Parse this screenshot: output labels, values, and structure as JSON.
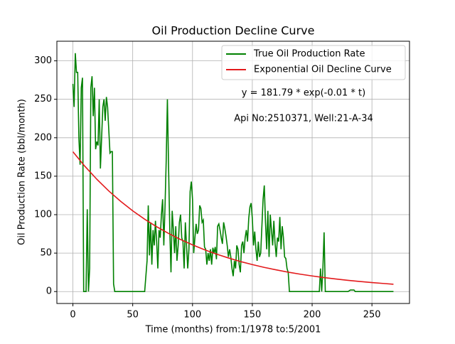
{
  "chart_data": {
    "type": "line",
    "title": "Oil Production Decline Curve",
    "xlabel": "Time (months) from:1/1978 to:5/2001",
    "ylabel": "Oil Production Rate (bbl/month)",
    "annotations": [
      "y = 181.79 * exp(-0.01 * t)",
      "Api No:2510371, Well:21-A-34"
    ],
    "xlim": [
      -13.4,
      281.4
    ],
    "ylim": [
      -15.5,
      325.5
    ],
    "xticks": [
      0,
      50,
      100,
      150,
      200,
      250
    ],
    "yticks": [
      0,
      50,
      100,
      150,
      200,
      250,
      300
    ],
    "grid": true,
    "legend": "upper right",
    "series": [
      {
        "name": "True Oil Production Rate",
        "color": "#008000",
        "x": [
          0,
          1,
          2,
          3,
          4,
          5,
          6,
          7,
          8,
          9,
          10,
          11,
          12,
          13,
          14,
          15,
          16,
          17,
          18,
          19,
          20,
          21,
          22,
          23,
          24,
          25,
          26,
          27,
          28,
          29,
          30,
          31,
          32,
          33,
          34,
          35,
          40,
          50,
          60,
          62,
          63,
          64,
          65,
          66,
          67,
          68,
          69,
          70,
          71,
          72,
          73,
          74,
          75,
          76,
          77,
          78,
          79,
          80,
          81,
          82,
          83,
          84,
          85,
          86,
          87,
          88,
          89,
          90,
          91,
          92,
          93,
          94,
          95,
          96,
          97,
          98,
          99,
          100,
          101,
          102,
          103,
          104,
          105,
          106,
          107,
          108,
          109,
          110,
          111,
          112,
          113,
          114,
          115,
          116,
          117,
          118,
          119,
          120,
          121,
          122,
          123,
          124,
          125,
          126,
          127,
          128,
          129,
          130,
          131,
          132,
          133,
          134,
          135,
          136,
          137,
          138,
          139,
          140,
          141,
          142,
          143,
          144,
          145,
          146,
          147,
          148,
          149,
          150,
          151,
          152,
          153,
          154,
          155,
          156,
          157,
          158,
          159,
          160,
          161,
          162,
          163,
          164,
          165,
          166,
          167,
          168,
          169,
          170,
          171,
          172,
          173,
          174,
          175,
          176,
          177,
          178,
          179,
          180,
          181,
          190,
          200,
          206,
          207,
          208,
          209,
          210,
          211,
          220,
          230,
          232,
          235,
          236,
          268
        ],
        "values": [
          270,
          240,
          310,
          285,
          285,
          200,
          165,
          265,
          278,
          0,
          0,
          0,
          107,
          0,
          30,
          265,
          280,
          228,
          265,
          185,
          195,
          190,
          250,
          160,
          200,
          240,
          250,
          222,
          253,
          240,
          210,
          180,
          182,
          182,
          10,
          0,
          0,
          0,
          0,
          40,
          112,
          47,
          90,
          35,
          80,
          60,
          92,
          65,
          30,
          80,
          70,
          100,
          120,
          60,
          110,
          170,
          250,
          160,
          80,
          25,
          105,
          80,
          50,
          85,
          40,
          60,
          90,
          100,
          70,
          65,
          30,
          90,
          60,
          30,
          55,
          130,
          143,
          120,
          50,
          70,
          88,
          75,
          80,
          112,
          108,
          90,
          93,
          58,
          55,
          35,
          50,
          40,
          55,
          35,
          57,
          50,
          58,
          42,
          85,
          88,
          80,
          70,
          62,
          90,
          82,
          72,
          60,
          45,
          55,
          45,
          30,
          20,
          40,
          30,
          60,
          55,
          35,
          25,
          60,
          65,
          50,
          70,
          80,
          65,
          95,
          110,
          115,
          95,
          60,
          78,
          55,
          40,
          65,
          45,
          50,
          85,
          120,
          138,
          90,
          55,
          105,
          45,
          100,
          80,
          60,
          92,
          63,
          45,
          70,
          65,
          97,
          55,
          85,
          70,
          45,
          43,
          30,
          25,
          0,
          0,
          0,
          0,
          30,
          0,
          30,
          77,
          0,
          0,
          0,
          2,
          2,
          0,
          0
        ]
      },
      {
        "name": "Exponential Oil Decline Curve",
        "color": "#e31a1c",
        "x": [
          0,
          10,
          20,
          30,
          40,
          50,
          60,
          70,
          80,
          90,
          100,
          110,
          120,
          130,
          140,
          150,
          160,
          170,
          180,
          190,
          200,
          210,
          220,
          230,
          240,
          250,
          260,
          268
        ],
        "values": [
          181.8,
          162.9,
          146.0,
          130.8,
          117.2,
          105.0,
          94.1,
          84.3,
          75.6,
          67.7,
          60.7,
          54.4,
          48.7,
          43.7,
          39.1,
          35.1,
          31.4,
          28.2,
          25.2,
          22.6,
          20.3,
          18.2,
          16.3,
          14.6,
          13.1,
          11.7,
          10.5,
          9.5
        ]
      }
    ]
  }
}
